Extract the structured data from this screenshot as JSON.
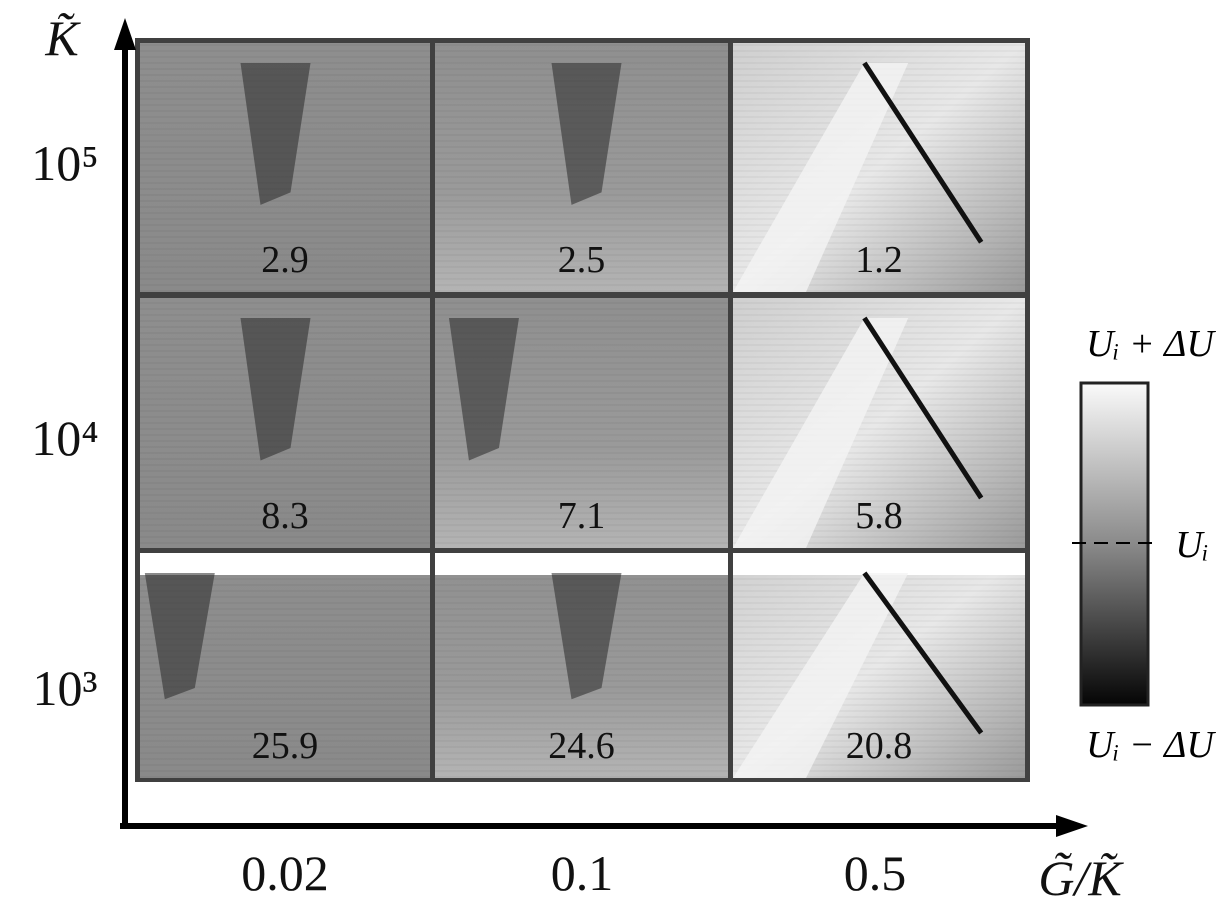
{
  "figure": {
    "y_axis_label": "K̃",
    "x_axis_label": "G̃/K̃",
    "row_labels": [
      "10⁵",
      "10⁴",
      "10³"
    ],
    "column_labels": [
      "0.02",
      "0.1",
      "0.5"
    ],
    "panels": [
      [
        "2.9",
        "2.5",
        "1.2"
      ],
      [
        "8.3",
        "7.1",
        "5.8"
      ],
      [
        "25.9",
        "24.6",
        "20.8"
      ]
    ],
    "colorbar": {
      "top": "Uᵢ + ΔU",
      "middle": "Uᵢ",
      "bottom": "Uᵢ − ΔU"
    }
  }
}
